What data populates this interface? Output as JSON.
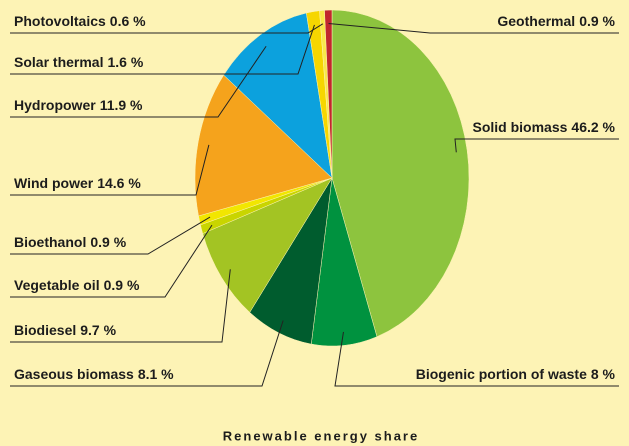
{
  "chart_data": {
    "type": "pie",
    "title": "Renewable energy share",
    "categories": [
      "Solid biomass",
      "Biogenic portion of waste",
      "Gaseous biomass",
      "Biodiesel",
      "Vegetable oil",
      "Bioethanol",
      "Wind power",
      "Hydropower",
      "Solar thermal",
      "Photovoltaics",
      "Geothermal"
    ],
    "values": [
      46.2,
      8,
      8.1,
      9.7,
      0.9,
      0.9,
      14.6,
      11.9,
      1.6,
      0.6,
      0.9
    ],
    "value_labels": [
      "46.2 %",
      "8 %",
      "8.1 %",
      "9.7 %",
      "0.9 %",
      "0.9 %",
      "14.6 %",
      "11.9 %",
      "1.6 %",
      "0.6 %",
      "0.9 %"
    ],
    "colors": [
      "#8dc43e",
      "#00923f",
      "#005c2e",
      "#a3c423",
      "#c9d500",
      "#f2e600",
      "#f5a31c",
      "#0ca1dd",
      "#f6d600",
      "#f8e84a",
      "#c1272d"
    ]
  }
}
